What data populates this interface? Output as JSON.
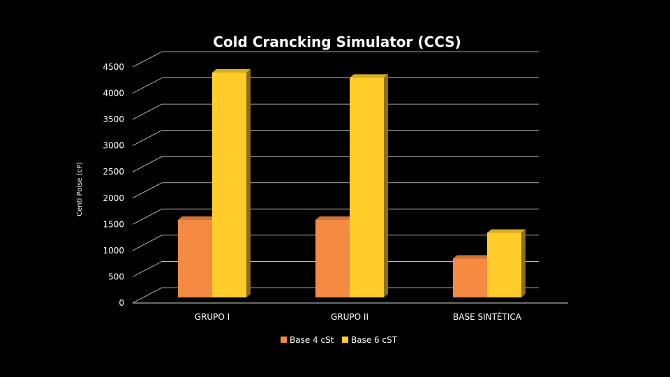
{
  "chart_data": {
    "type": "bar",
    "title": "Cold Crancking Simulator (CCS)",
    "ylabel": "Centi Poise (cP)",
    "xlabel": "",
    "categories": [
      "GRUPO I",
      "GRUPO II",
      "BASE SINTÉTICA"
    ],
    "series": [
      {
        "name": "Base 4 cSt",
        "values": [
          1500,
          1500,
          750
        ],
        "color": "#F58A42"
      },
      {
        "name": "Base 6 cST",
        "values": [
          4350,
          4250,
          1250
        ],
        "color": "#FFCC29"
      }
    ],
    "ylim": [
      0,
      4500
    ],
    "yticks": [
      0,
      500,
      1000,
      1500,
      2000,
      2500,
      3000,
      3500,
      4000,
      4500
    ],
    "grid": true,
    "legend_position": "bottom",
    "style": "3d-clustered-column"
  }
}
